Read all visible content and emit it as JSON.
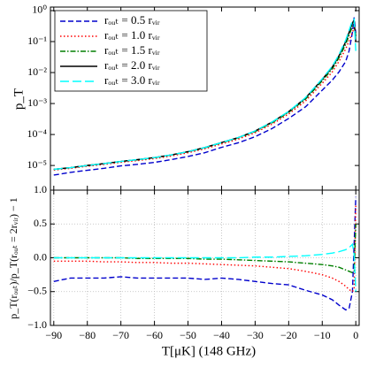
{
  "chart_data": [
    {
      "type": "line",
      "ylabel": "p_T",
      "log_y": true,
      "ylim": [
        1.6e-06,
        1.3
      ],
      "yticks": [
        {
          "value": 1e-05,
          "label": "10⁻⁵"
        },
        {
          "value": 0.0001,
          "label": "10⁻⁴"
        },
        {
          "value": 0.001,
          "label": "10⁻³"
        },
        {
          "value": 0.01,
          "label": "10⁻²"
        },
        {
          "value": 0.1,
          "label": "10⁻¹"
        },
        {
          "value": 1,
          "label": "10⁰"
        }
      ],
      "xlim": [
        -91,
        1
      ],
      "xticks": [
        -90,
        -80,
        -70,
        -60,
        -50,
        -40,
        -30,
        -20,
        -10,
        0
      ],
      "legend": "upper left",
      "x": [
        -90,
        -85,
        -80,
        -75,
        -70,
        -65,
        -60,
        -55,
        -50,
        -45,
        -40,
        -35,
        -30,
        -25,
        -20,
        -15,
        -10,
        -7,
        -5,
        -3,
        -2,
        -1,
        -0.5,
        0
      ],
      "series": [
        {
          "name": "rₒᵤₜ = 0.5 rᵥᵢᵣ",
          "color": "#0000cc",
          "dash": "dashed",
          "values": [
            4.9e-06,
            6e-06,
            7e-06,
            8.1e-06,
            9.7e-06,
            1.09e-05,
            1.26e-05,
            1.54e-05,
            1.96e-05,
            2.58e-05,
            3.85e-05,
            5.4e-05,
            8.5e-05,
            0.000155,
            0.00033,
            0.00078,
            0.0027,
            0.0057,
            0.0105,
            0.023,
            0.05,
            0.2,
            0.6,
            0.19
          ]
        },
        {
          "name": "rₒᵤₜ = 1.0 rᵥᵢᵣ",
          "color": "#ff0000",
          "dash": "dotted",
          "values": [
            7.1e-06,
            8.1e-06,
            9.5e-06,
            1.08e-05,
            1.27e-05,
            1.44e-05,
            1.67e-05,
            2.02e-05,
            2.58e-05,
            3.46e-05,
            4.95e-05,
            7.1e-05,
            0.000114,
            0.000215,
            0.00046,
            0.0012,
            0.0045,
            0.0105,
            0.023,
            0.058,
            0.106,
            0.2,
            0.275,
            0.18
          ]
        },
        {
          "name": "rₒᵤₜ = 1.5 rᵥᵢᵣ",
          "color": "#007f00",
          "dash": "dashdot",
          "values": [
            7.5e-06,
            8.5e-06,
            1e-05,
            1.15e-05,
            1.35e-05,
            1.53e-05,
            1.78e-05,
            2.18e-05,
            2.77e-05,
            3.72e-05,
            5.4e-05,
            7.8e-05,
            0.000125,
            0.000238,
            0.00052,
            0.00138,
            0.0054,
            0.0132,
            0.03,
            0.082,
            0.16,
            0.31,
            0.4,
            0.15
          ]
        },
        {
          "name": "rₒᵤₜ = 2.0 rᵥᵢᵣ",
          "color": "#000000",
          "dash": "solid",
          "values": [
            7.5e-06,
            8.5e-06,
            1e-05,
            1.15e-05,
            1.35e-05,
            1.55e-05,
            1.8e-05,
            2.2e-05,
            2.8e-05,
            3.8e-05,
            5.5e-05,
            8e-05,
            0.00013,
            0.00025,
            0.00055,
            0.0015,
            0.006,
            0.015,
            0.035,
            0.1,
            0.2,
            0.4,
            0.5,
            0.1
          ]
        },
        {
          "name": "rₒᵤₜ = 3.0 rᵥᵢᵣ",
          "color": "#00ffff",
          "dash": "longdash",
          "values": [
            7.5e-06,
            8.5e-06,
            1e-05,
            1.15e-05,
            1.35e-05,
            1.55e-05,
            1.8e-05,
            2.2e-05,
            2.8e-05,
            3.8e-05,
            5.5e-05,
            8e-05,
            0.000131,
            0.000253,
            0.00056,
            0.00155,
            0.0063,
            0.016,
            0.038,
            0.112,
            0.23,
            0.48,
            0.53,
            0.05
          ]
        }
      ]
    },
    {
      "type": "line",
      "ylabel": "p_T(rₒᵤₜ)/p_T(rₒᵤₜ = 2rᵥᵢᵣ) − 1",
      "xlabel": "T[μK] (148 GHz)",
      "grid": true,
      "ylim": [
        -1,
        1
      ],
      "yticks": [
        {
          "value": -1,
          "label": "−1.0"
        },
        {
          "value": -0.5,
          "label": "−0.5"
        },
        {
          "value": 0,
          "label": "0.0"
        },
        {
          "value": 0.5,
          "label": "0.5"
        },
        {
          "value": 1,
          "label": "1.0"
        }
      ],
      "xlim": [
        -91,
        1
      ],
      "xticks": [
        {
          "value": -90,
          "label": "−90"
        },
        {
          "value": -80,
          "label": "−80"
        },
        {
          "value": -70,
          "label": "−70"
        },
        {
          "value": -60,
          "label": "−60"
        },
        {
          "value": -50,
          "label": "−50"
        },
        {
          "value": -40,
          "label": "−40"
        },
        {
          "value": -30,
          "label": "−30"
        },
        {
          "value": -20,
          "label": "−20"
        },
        {
          "value": -10,
          "label": "−10"
        },
        {
          "value": 0,
          "label": "0"
        }
      ],
      "x": [
        -90,
        -85,
        -80,
        -75,
        -70,
        -65,
        -60,
        -55,
        -50,
        -45,
        -40,
        -35,
        -30,
        -25,
        -20,
        -15,
        -10,
        -7,
        -5,
        -3,
        -2,
        -1,
        -0.5,
        0
      ],
      "series": [
        {
          "color": "#0000cc",
          "dash": "dashed",
          "values": [
            -0.35,
            -0.3,
            -0.3,
            -0.3,
            -0.28,
            -0.3,
            -0.3,
            -0.3,
            -0.3,
            -0.32,
            -0.3,
            -0.32,
            -0.35,
            -0.38,
            -0.4,
            -0.48,
            -0.55,
            -0.62,
            -0.7,
            -0.77,
            -0.75,
            -0.5,
            0.2,
            0.9
          ]
        },
        {
          "color": "#ff0000",
          "dash": "dotted",
          "values": [
            -0.05,
            -0.05,
            -0.05,
            -0.06,
            -0.06,
            -0.07,
            -0.07,
            -0.08,
            -0.08,
            -0.09,
            -0.1,
            -0.11,
            -0.12,
            -0.14,
            -0.16,
            -0.2,
            -0.25,
            -0.3,
            -0.35,
            -0.42,
            -0.47,
            -0.5,
            -0.45,
            0.8
          ]
        },
        {
          "color": "#007f00",
          "dash": "dashdot",
          "values": [
            0,
            0,
            0,
            0,
            0,
            -0.01,
            -0.01,
            -0.01,
            -0.01,
            -0.02,
            -0.02,
            -0.03,
            -0.04,
            -0.05,
            -0.06,
            -0.08,
            -0.1,
            -0.12,
            -0.14,
            -0.18,
            -0.2,
            -0.22,
            -0.2,
            0.5
          ]
        },
        {
          "color": "#00ffff",
          "dash": "longdash",
          "values": [
            0,
            0,
            0,
            0,
            0,
            0,
            0,
            0,
            0,
            0,
            0,
            0,
            0.01,
            0.01,
            0.02,
            0.03,
            0.05,
            0.07,
            0.09,
            0.12,
            0.15,
            0.2,
            0.05,
            -0.5
          ]
        }
      ]
    }
  ]
}
